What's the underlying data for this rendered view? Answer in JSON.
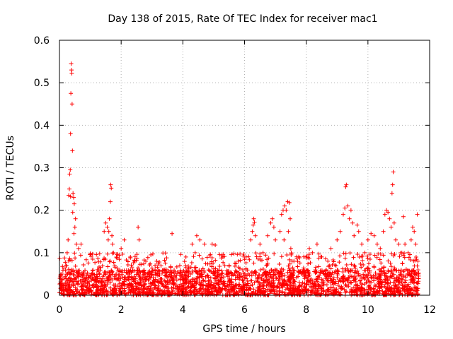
{
  "chart_data": {
    "type": "scatter",
    "title": "Day 138 of 2015, Rate Of TEC Index for receiver mac1",
    "xlabel": "GPS time / hours",
    "ylabel": "ROTI / TECUs",
    "xlim": [
      0,
      12
    ],
    "ylim": [
      0,
      0.6
    ],
    "xticks": [
      0,
      2,
      4,
      6,
      8,
      10,
      12
    ],
    "yticks": [
      0,
      0.1,
      0.2,
      0.3,
      0.4,
      0.5,
      0.6
    ],
    "xtick_labels": [
      "0",
      "2",
      "4",
      "6",
      "8",
      "10",
      "12"
    ],
    "ytick_labels": [
      "0",
      "0.1",
      "0.2",
      "0.3",
      "0.4",
      "0.5",
      "0.6"
    ],
    "grid": true,
    "marker": "+",
    "color": "#ff0000",
    "series": [
      {
        "name": "ROTI",
        "points": [
          [
            0.38,
            0.545
          ],
          [
            0.39,
            0.53
          ],
          [
            0.4,
            0.522
          ],
          [
            0.37,
            0.475
          ],
          [
            0.41,
            0.45
          ],
          [
            0.36,
            0.38
          ],
          [
            0.42,
            0.34
          ],
          [
            0.35,
            0.295
          ],
          [
            0.33,
            0.285
          ],
          [
            0.32,
            0.25
          ],
          [
            0.3,
            0.235
          ],
          [
            0.36,
            0.232
          ],
          [
            0.44,
            0.24
          ],
          [
            0.46,
            0.23
          ],
          [
            0.48,
            0.215
          ],
          [
            0.43,
            0.195
          ],
          [
            0.5,
            0.16
          ],
          [
            0.47,
            0.145
          ],
          [
            0.55,
            0.12
          ],
          [
            0.62,
            0.11
          ],
          [
            0.7,
            0.12
          ],
          [
            0.25,
            0.1
          ],
          [
            0.28,
            0.13
          ],
          [
            0.52,
            0.18
          ],
          [
            1.5,
            0.17
          ],
          [
            1.55,
            0.16
          ],
          [
            1.6,
            0.15
          ],
          [
            1.62,
            0.18
          ],
          [
            1.65,
            0.22
          ],
          [
            1.66,
            0.26
          ],
          [
            1.68,
            0.252
          ],
          [
            1.7,
            0.14
          ],
          [
            1.72,
            0.12
          ],
          [
            1.58,
            0.13
          ],
          [
            1.45,
            0.15
          ],
          [
            1.75,
            0.1
          ],
          [
            2.1,
            0.13
          ],
          [
            2.0,
            0.11
          ],
          [
            2.55,
            0.16
          ],
          [
            2.58,
            0.13
          ],
          [
            2.3,
            0.09
          ],
          [
            2.8,
            0.08
          ],
          [
            3.1,
            0.07
          ],
          [
            3.4,
            0.06
          ],
          [
            3.65,
            0.145
          ],
          [
            3.9,
            0.07
          ],
          [
            4.1,
            0.09
          ],
          [
            4.3,
            0.12
          ],
          [
            4.45,
            0.14
          ],
          [
            4.55,
            0.13
          ],
          [
            4.7,
            0.12
          ],
          [
            4.4,
            0.1
          ],
          [
            4.95,
            0.12
          ],
          [
            5.05,
            0.118
          ],
          [
            5.3,
            0.09
          ],
          [
            5.5,
            0.07
          ],
          [
            5.8,
            0.08
          ],
          [
            6.05,
            0.09
          ],
          [
            6.2,
            0.13
          ],
          [
            6.25,
            0.15
          ],
          [
            6.28,
            0.165
          ],
          [
            6.3,
            0.18
          ],
          [
            6.32,
            0.172
          ],
          [
            6.35,
            0.14
          ],
          [
            6.5,
            0.12
          ],
          [
            6.6,
            0.1
          ],
          [
            6.75,
            0.14
          ],
          [
            6.85,
            0.17
          ],
          [
            6.9,
            0.18
          ],
          [
            6.95,
            0.16
          ],
          [
            7.0,
            0.13
          ],
          [
            7.15,
            0.15
          ],
          [
            7.2,
            0.19
          ],
          [
            7.25,
            0.2
          ],
          [
            7.3,
            0.21
          ],
          [
            7.35,
            0.2
          ],
          [
            7.4,
            0.22
          ],
          [
            7.45,
            0.218
          ],
          [
            7.48,
            0.18
          ],
          [
            7.42,
            0.15
          ],
          [
            7.28,
            0.13
          ],
          [
            7.5,
            0.11
          ],
          [
            7.6,
            0.08
          ],
          [
            7.9,
            0.06
          ],
          [
            8.1,
            0.11
          ],
          [
            8.2,
            0.1
          ],
          [
            8.35,
            0.12
          ],
          [
            8.5,
            0.09
          ],
          [
            8.7,
            0.08
          ],
          [
            8.8,
            0.11
          ],
          [
            9.0,
            0.13
          ],
          [
            9.1,
            0.15
          ],
          [
            9.2,
            0.19
          ],
          [
            9.25,
            0.205
          ],
          [
            9.28,
            0.255
          ],
          [
            9.3,
            0.26
          ],
          [
            9.35,
            0.21
          ],
          [
            9.4,
            0.18
          ],
          [
            9.45,
            0.2
          ],
          [
            9.5,
            0.17
          ],
          [
            9.55,
            0.14
          ],
          [
            9.65,
            0.165
          ],
          [
            9.7,
            0.15
          ],
          [
            9.8,
            0.12
          ],
          [
            9.9,
            0.1
          ],
          [
            10.0,
            0.13
          ],
          [
            10.1,
            0.145
          ],
          [
            10.2,
            0.14
          ],
          [
            10.3,
            0.12
          ],
          [
            10.4,
            0.11
          ],
          [
            10.5,
            0.15
          ],
          [
            10.55,
            0.19
          ],
          [
            10.6,
            0.2
          ],
          [
            10.65,
            0.195
          ],
          [
            10.7,
            0.18
          ],
          [
            10.75,
            0.16
          ],
          [
            10.78,
            0.24
          ],
          [
            10.8,
            0.26
          ],
          [
            10.82,
            0.29
          ],
          [
            10.85,
            0.17
          ],
          [
            10.9,
            0.13
          ],
          [
            11.0,
            0.12
          ],
          [
            11.1,
            0.1
          ],
          [
            11.15,
            0.185
          ],
          [
            11.2,
            0.12
          ],
          [
            11.3,
            0.1
          ],
          [
            11.4,
            0.13
          ],
          [
            11.45,
            0.16
          ],
          [
            11.5,
            0.15
          ],
          [
            11.55,
            0.12
          ],
          [
            11.6,
            0.19
          ],
          [
            11.62,
            0.08
          ],
          [
            11.58,
            0.05
          ]
        ]
      }
    ],
    "dense_band": {
      "x_range": [
        0.0,
        11.65
      ],
      "typical_max": 0.06,
      "peak_max": 0.1,
      "note": "dense cloud of ROTI values between 0 and ~0.06 across the full time range"
    }
  }
}
